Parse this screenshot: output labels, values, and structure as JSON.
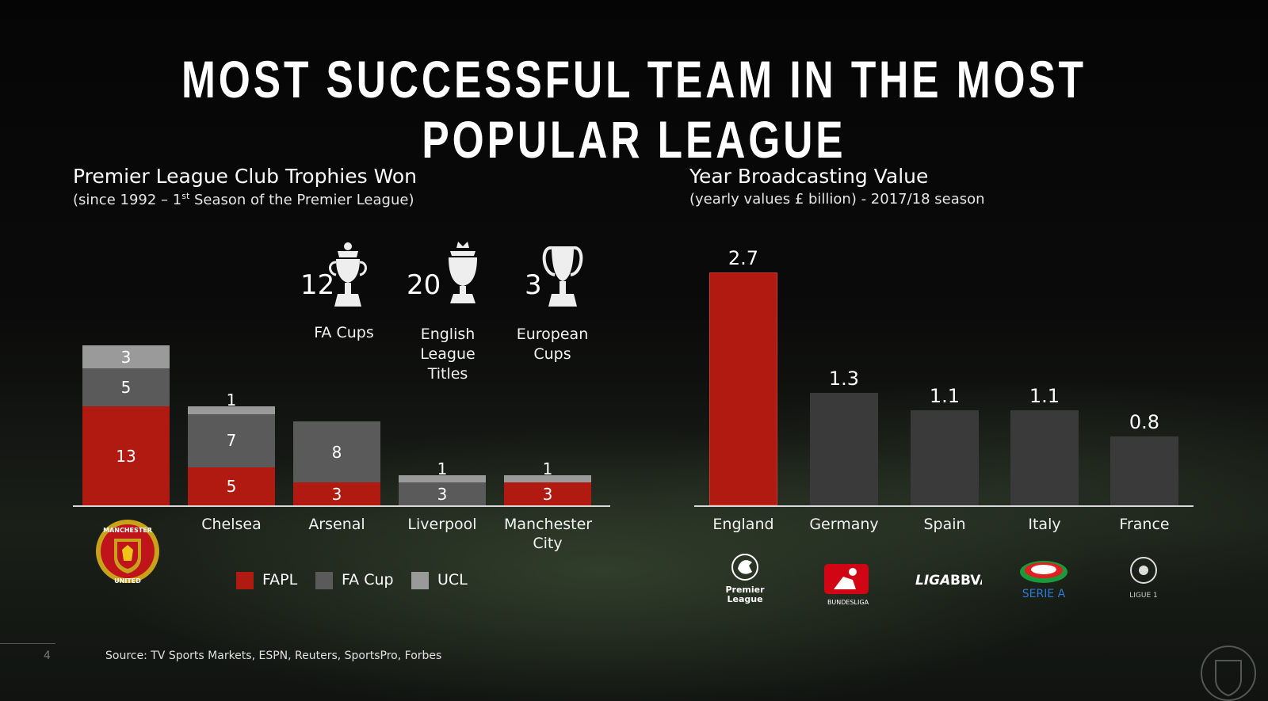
{
  "title": "MOST SUCCESSFUL TEAM IN THE MOST POPULAR LEAGUE",
  "colors": {
    "fapl": "#b11a10",
    "fa_cup": "#5a5a5a",
    "ucl": "#9a9a9a",
    "england": "#b11a10",
    "other": "#3a3a3a"
  },
  "chart_data": [
    {
      "type": "bar",
      "stacked": true,
      "title": "Premier League Club Trophies Won",
      "subtitle": "(since 1992 – 1st Season of the Premier League)",
      "subtitle_main": "(since 1992 – 1",
      "subtitle_sup": "st",
      "subtitle_rest": " Season of the Premier League)",
      "categories": [
        "Manchester United",
        "Chelsea",
        "Arsenal",
        "Liverpool",
        "Manchester City"
      ],
      "category_labels": [
        "",
        "Chelsea",
        "Arsenal",
        "Liverpool",
        "Manchester City"
      ],
      "series": [
        {
          "name": "FAPL",
          "values": [
            13,
            5,
            3,
            0,
            3
          ]
        },
        {
          "name": "FA Cup",
          "values": [
            5,
            7,
            8,
            3,
            0
          ]
        },
        {
          "name": "UCL",
          "values": [
            3,
            1,
            0,
            1,
            1
          ]
        }
      ],
      "ylim": [
        0,
        21
      ],
      "legend": [
        "FAPL",
        "FA Cup",
        "UCL"
      ]
    },
    {
      "type": "bar",
      "title": "Year Broadcasting Value",
      "subtitle": "(yearly values £ billion) - 2017/18 season",
      "categories": [
        "England",
        "Germany",
        "Spain",
        "Italy",
        "France"
      ],
      "values": [
        2.7,
        1.3,
        1.1,
        1.1,
        0.8
      ],
      "value_labels": [
        "2.7",
        "1.3",
        "1.1",
        "1.1",
        "0.8"
      ],
      "ylim": [
        0,
        2.7
      ],
      "league_logos": [
        "Premier League",
        "BUNDESLIGA",
        "LIGA BBVA",
        "SERIE A",
        "LIGUE 1"
      ]
    }
  ],
  "trophies": [
    {
      "count": "12",
      "label": "FA  Cups",
      "icon": "fa-cup-trophy-icon"
    },
    {
      "count": "20",
      "label": "English League Titles",
      "label_l1": "English",
      "label_l2": "League Titles",
      "icon": "premier-league-trophy-icon"
    },
    {
      "count": "3",
      "label": "European Cups",
      "label_l1": "European",
      "label_l2": "Cups",
      "icon": "european-cup-trophy-icon"
    }
  ],
  "club_crest": {
    "text_top": "MANCHESTER",
    "text_bottom": "UNITED"
  },
  "source": "Source: TV Sports Markets, ESPN, Reuters, SportsPro, Forbes",
  "page_number": "4"
}
